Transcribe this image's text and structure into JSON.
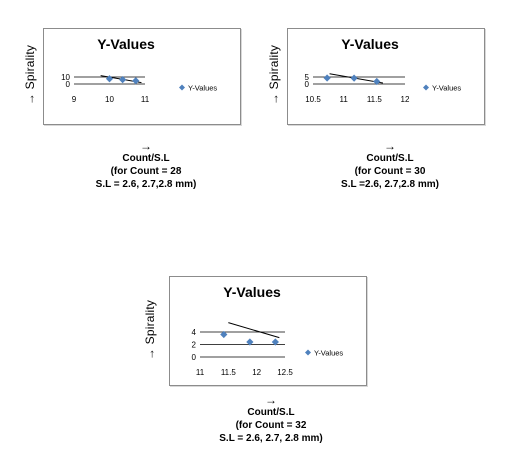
{
  "chart_data": [
    {
      "type": "scatter",
      "title": "Y-Values",
      "ylabel": "Spirality",
      "legend": "Y-Values",
      "legend_position": "right",
      "xlim": [
        9,
        11
      ],
      "ylim": [
        0,
        10
      ],
      "xticks": [
        "9",
        "10",
        "11"
      ],
      "yticks": [
        "0",
        "10"
      ],
      "series": [
        {
          "name": "Y-Values",
          "x": [
            10.0,
            10.37,
            10.74
          ],
          "y": [
            7.5,
            6.2,
            4.6
          ]
        }
      ],
      "trendline": [
        [
          9.75,
          12
        ],
        [
          10.9,
          2
        ]
      ],
      "caption": {
        "arrow": "→",
        "lines": [
          "Count/S.L",
          "(for Count = 28",
          "S.L = 2.6, 2.7,2.8 mm)"
        ]
      }
    },
    {
      "type": "scatter",
      "title": "Y-Values",
      "ylabel": "Spirality",
      "legend": "Y-Values",
      "legend_position": "right",
      "xlim": [
        10.5,
        12
      ],
      "ylim": [
        0,
        5
      ],
      "xticks": [
        "10.5",
        "11",
        "11.5",
        "12"
      ],
      "yticks": [
        "0",
        "5"
      ],
      "series": [
        {
          "name": "Y-Values",
          "x": [
            10.73,
            11.17,
            11.54
          ],
          "y": [
            4.3,
            4.2,
            1.8
          ]
        }
      ],
      "trendline": [
        [
          10.77,
          7.3
        ],
        [
          11.64,
          0.7
        ]
      ],
      "caption": {
        "arrow": "→",
        "lines": [
          "Count/S.L",
          "(for Count = 30",
          "S.L =2.6, 2.7,2.8  mm)"
        ]
      }
    },
    {
      "type": "scatter",
      "title": "Y-Values",
      "ylabel": "Spirality",
      "legend": "Y-Values",
      "legend_position": "right",
      "xlim": [
        11,
        12.5
      ],
      "ylim": [
        0,
        4
      ],
      "xticks": [
        "11",
        "11.5",
        "12",
        "12.5"
      ],
      "yticks": [
        "0",
        "2",
        "4"
      ],
      "series": [
        {
          "name": "Y-Values",
          "x": [
            11.42,
            11.88,
            12.33
          ],
          "y": [
            3.6,
            2.4,
            2.4
          ]
        }
      ],
      "trendline": [
        [
          11.5,
          5.5
        ],
        [
          12.4,
          3.1
        ]
      ],
      "caption": {
        "arrow": "→",
        "lines": [
          "Count/S.L",
          "(for Count = 32",
          "S.L = 2.6, 2.7, 2.8 mm)"
        ]
      }
    }
  ],
  "colors": {
    "marker": "#4f81bd",
    "trendline": "#000000",
    "gridline": "#000000",
    "frame": "#8c8c8c"
  },
  "icons": {
    "ylabel_arrow": "arrow-up-icon"
  }
}
